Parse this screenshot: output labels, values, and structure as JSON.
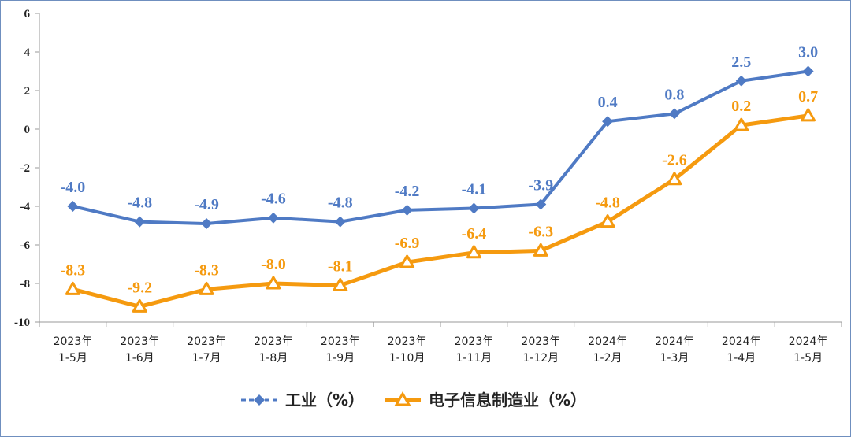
{
  "chart_data": {
    "type": "line",
    "categories": [
      [
        "2023年",
        "1-5月"
      ],
      [
        "2023年",
        "1-6月"
      ],
      [
        "2023年",
        "1-7月"
      ],
      [
        "2023年",
        "1-8月"
      ],
      [
        "2023年",
        "1-9月"
      ],
      [
        "2023年",
        "1-10月"
      ],
      [
        "2023年",
        "1-11月"
      ],
      [
        "2023年",
        "1-12月"
      ],
      [
        "2024年",
        "1-2月"
      ],
      [
        "2024年",
        "1-3月"
      ],
      [
        "2024年",
        "1-4月"
      ],
      [
        "2024年",
        "1-5月"
      ]
    ],
    "series": [
      {
        "name": "工业（%）",
        "color": "#4f7ac4",
        "marker": "diamond",
        "values": [
          -4.0,
          -4.8,
          -4.9,
          -4.6,
          -4.8,
          -4.2,
          -4.1,
          -3.9,
          0.4,
          0.8,
          2.5,
          3.0
        ],
        "labels": [
          "-4.0",
          "-4.8",
          "-4.9",
          "-4.6",
          "-4.8",
          "-4.2",
          "-4.1",
          "-3.9",
          "0.4",
          "0.8",
          "2.5",
          "3.0"
        ]
      },
      {
        "name": "电子信息制造业（%）",
        "color": "#f59a0f",
        "marker": "triangle",
        "values": [
          -8.3,
          -9.2,
          -8.3,
          -8.0,
          -8.1,
          -6.9,
          -6.4,
          -6.3,
          -4.8,
          -2.6,
          0.2,
          0.7
        ],
        "labels": [
          "-8.3",
          "-9.2",
          "-8.3",
          "-8.0",
          "-8.1",
          "-6.9",
          "-6.4",
          "-6.3",
          "-4.8",
          "-2.6",
          "0.2",
          "0.7"
        ]
      }
    ],
    "ylim": [
      -10,
      6
    ],
    "yticks": [
      "6",
      "4",
      "2",
      "0",
      "-2",
      "-4",
      "-6",
      "-8",
      "-10"
    ],
    "legend_position": "bottom-center",
    "grid": false
  }
}
